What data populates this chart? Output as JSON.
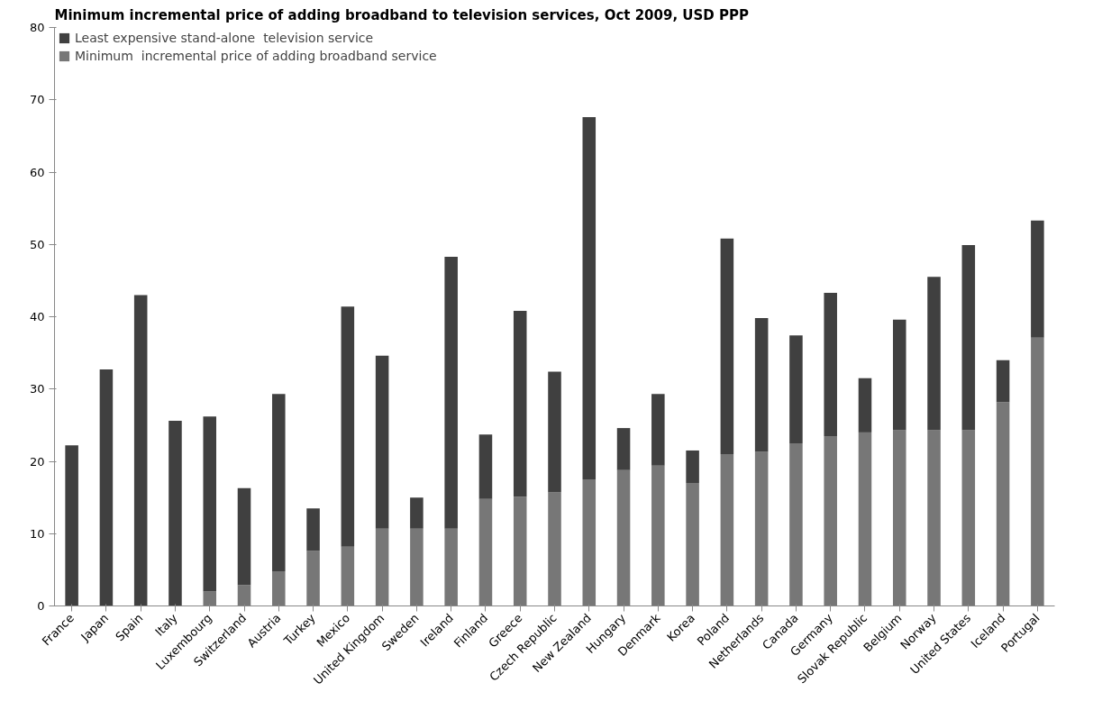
{
  "chart_data": {
    "type": "bar",
    "stacked": true,
    "title": "Minimum incremental price of adding broadband to television services, Oct 2009,  USD PPP",
    "categories": [
      "France",
      "Japan",
      "Spain",
      "Italy",
      "Luxembourg",
      "Switzerland",
      "Austria",
      "Turkey",
      "Mexico",
      "United Kingdom",
      "Sweden",
      "Ireland",
      "Finland",
      "Greece",
      "Czech Republic",
      "New Zealand",
      "Hungary",
      "Denmark",
      "Korea",
      "Poland",
      "Netherlands",
      "Canada",
      "Germany",
      "Slovak Republic",
      "Belgium",
      "Norway",
      "United States",
      "Iceland",
      "Portugal"
    ],
    "series": [
      {
        "name": "Minimum  incremental price of adding broadband service",
        "color": "#777777",
        "values": [
          0,
          0,
          0,
          0,
          2,
          2.9,
          4.8,
          7.6,
          8.2,
          10.7,
          10.7,
          10.7,
          14.8,
          15.1,
          15.7,
          17.5,
          18.8,
          19.4,
          17,
          21,
          21.3,
          22.5,
          23.5,
          24,
          24.3,
          24.3,
          24.3,
          28.2,
          37.1
        ]
      },
      {
        "name": "Least expensive stand-alone  television service",
        "color": "#404040",
        "values": [
          22.2,
          32.7,
          43,
          25.6,
          24.2,
          13.4,
          24.5,
          5.9,
          33.2,
          23.9,
          4.3,
          37.6,
          8.9,
          25.7,
          16.7,
          50.1,
          5.8,
          9.9,
          4.5,
          29.8,
          18.5,
          14.9,
          19.8,
          7.5,
          15.3,
          21.2,
          25.6,
          5.8,
          16.2
        ]
      }
    ],
    "ylim": [
      0,
      80
    ],
    "yticks": [
      0,
      10,
      20,
      30,
      40,
      50,
      60,
      70,
      80
    ],
    "grid": false,
    "legend": "top left"
  }
}
